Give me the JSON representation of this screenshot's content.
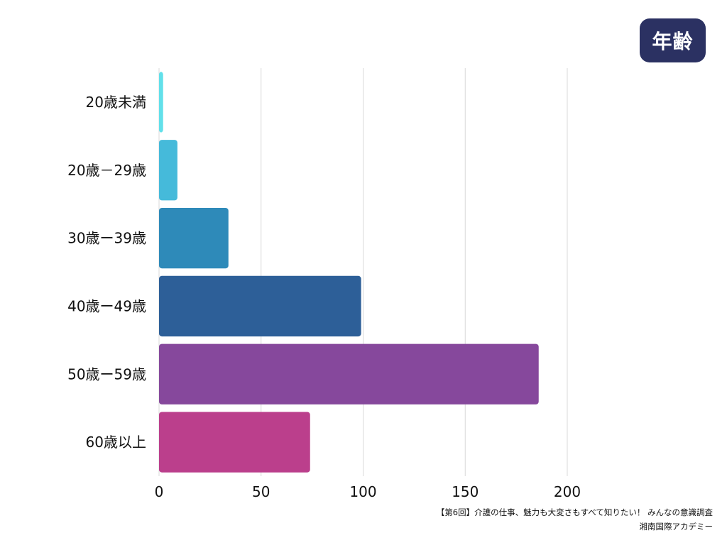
{
  "badge": {
    "label": "年齢"
  },
  "chart_data": {
    "type": "bar",
    "orientation": "horizontal",
    "categories": [
      "20歳未満",
      "20歳－29歳",
      "30歳ー39歳",
      "40歳ー49歳",
      "50歳ー59歳",
      "60歳以上"
    ],
    "values": [
      2,
      9,
      34,
      99,
      186,
      74
    ],
    "xlim": [
      0,
      250
    ],
    "xticks": [
      0,
      50,
      100,
      150,
      200
    ],
    "grid": true,
    "colors": [
      "#62e0ea",
      "#45bada",
      "#2e8ab9",
      "#2d5f98",
      "#86489c",
      "#bb3f8c"
    ]
  },
  "source": {
    "line1": "【第6回】介護の仕事、魅力も大変さもすべて知りたい！ みんなの意識調査",
    "line2": "湘南国際アカデミー"
  }
}
